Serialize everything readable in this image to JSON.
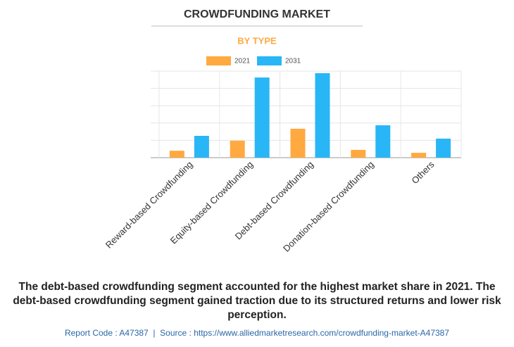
{
  "chart_data": {
    "type": "bar",
    "title": "CROWDFUNDING MARKET",
    "subtitle": "BY TYPE",
    "categories": [
      "Reward-based Crowdfunding",
      "Equity-based Crowdfunding",
      "Debt-based Crowdfunding",
      "Donation-based Crowdfunding",
      "Others"
    ],
    "series": [
      {
        "name": "2021",
        "color": "#ffa940",
        "values": [
          0.4,
          0.98,
          1.67,
          0.45,
          0.28
        ]
      },
      {
        "name": "2031",
        "color": "#29b6f6",
        "values": [
          1.26,
          4.63,
          4.88,
          1.87,
          1.1
        ]
      }
    ],
    "ylim": [
      0,
      5
    ],
    "gridlines": [
      0,
      1,
      2,
      3,
      4,
      5
    ],
    "grid": true
  },
  "description": "The debt-based crowdfunding segment accounted for the highest market share in 2021. The debt-based crowdfunding segment gained traction due to its structured returns and lower risk perception.",
  "footer": "Report Code : A47387  |  Source : https://www.alliedmarketresearch.com/crowdfunding-market-A47387"
}
